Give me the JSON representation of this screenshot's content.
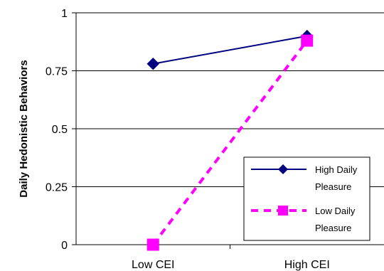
{
  "chart_data": {
    "type": "line",
    "categories": [
      "Low CEI",
      "High CEI"
    ],
    "ylabel": "Daily Hedonistic Behaviors",
    "xlabel": "",
    "ylim": [
      0,
      1
    ],
    "yticks": [
      "0",
      "0.25",
      "0.5",
      "0.75",
      "1"
    ],
    "grid": "horizontal",
    "legend_position": "right",
    "series": [
      {
        "name": [
          "High Daily",
          "Pleasure"
        ],
        "values": [
          0.78,
          0.9
        ],
        "color": "#000080",
        "marker": "diamond",
        "line": "solid"
      },
      {
        "name": [
          "Low Daily",
          "Pleasure"
        ],
        "values": [
          0.0,
          0.88
        ],
        "color": "#FF00FF",
        "marker": "square",
        "line": "dashed"
      }
    ]
  }
}
